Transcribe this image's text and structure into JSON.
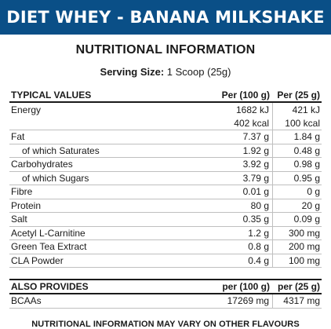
{
  "banner": {
    "title": "DIET WHEY - BANANA MILKSHAKE"
  },
  "heading": "NUTRITIONAL INFORMATION",
  "serving": {
    "label": "Serving Size:",
    "value": "1 Scoop (25g)"
  },
  "table": {
    "headers": [
      "TYPICAL VALUES",
      "Per (100 g)",
      "Per (25 g)"
    ],
    "rows": [
      {
        "name": "Energy",
        "per100": "1682 kJ",
        "per25": "421 kJ"
      },
      {
        "name": "",
        "per100": "402 kcal",
        "per25": "100 kcal"
      },
      {
        "name": "Fat",
        "per100": "7.37 g",
        "per25": "1.84 g"
      },
      {
        "name": "of which Saturates",
        "per100": "1.92 g",
        "per25": "0.48 g"
      },
      {
        "name": "Carbohydrates",
        "per100": "3.92 g",
        "per25": "0.98 g"
      },
      {
        "name": "of which Sugars",
        "per100": "3.79 g",
        "per25": "0.95 g"
      },
      {
        "name": "Fibre",
        "per100": "0.01 g",
        "per25": "0 g"
      },
      {
        "name": "Protein",
        "per100": "80 g",
        "per25": "20 g"
      },
      {
        "name": "Salt",
        "per100": "0.35 g",
        "per25": "0.09 g"
      },
      {
        "name": "Acetyl L-Carnitine",
        "per100": "1.2 g",
        "per25": "300 mg"
      },
      {
        "name": "Green Tea Extract",
        "per100": "0.8 g",
        "per25": "200 mg"
      },
      {
        "name": "CLA Powder",
        "per100": "0.4 g",
        "per25": "100 mg"
      }
    ]
  },
  "also": {
    "headers": [
      "ALSO PROVIDES",
      "per (100 g)",
      "per (25 g)"
    ],
    "rows": [
      {
        "name": "BCAAs",
        "per100": "17269 mg",
        "per25": "4317 mg"
      }
    ]
  },
  "footer": "NUTRITIONAL INFORMATION MAY VARY ON OTHER FLAVOURS",
  "colors": {
    "banner": "#0a4f87",
    "text": "#1a1a1a",
    "rule": "#bfbfbf"
  }
}
